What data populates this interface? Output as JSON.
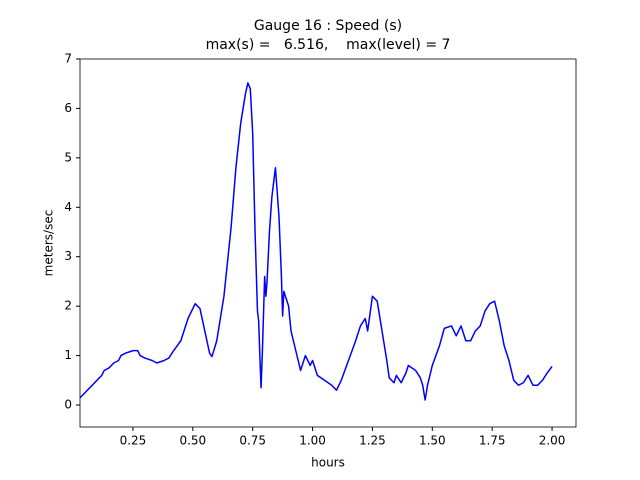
{
  "chart_data": {
    "type": "line",
    "title": "Gauge 16 : Speed (s)",
    "subtitle": "max(s) =   6.516,    max(level) = 7",
    "x_label": "hours",
    "y_label": "meters/sec",
    "xlim": [
      0.029,
      2.1
    ],
    "ylim": [
      -0.445,
      7
    ],
    "xticks": [
      0.25,
      {
        "value": 0.5,
        "label": "0.50"
      },
      0.75,
      {
        "value": 1,
        "label": "1.00"
      },
      1.25,
      {
        "value": 1.5,
        "label": "1.50"
      },
      1.75,
      {
        "value": 2,
        "label": "2.00"
      }
    ],
    "yticks": [
      0,
      1,
      2,
      3,
      4,
      5,
      6,
      7
    ],
    "grid": false,
    "x": [
      0.03,
      0.05,
      0.08,
      0.1,
      0.12,
      0.13,
      0.15,
      0.17,
      0.19,
      0.2,
      0.22,
      0.25,
      0.27,
      0.28,
      0.3,
      0.33,
      0.35,
      0.38,
      0.4,
      0.42,
      0.45,
      0.48,
      0.51,
      0.53,
      0.55,
      0.57,
      0.58,
      0.6,
      0.63,
      0.66,
      0.68,
      0.7,
      0.72,
      0.73,
      0.74,
      0.75,
      0.76,
      0.77,
      0.775,
      0.78,
      0.785,
      0.79,
      0.8,
      0.805,
      0.81,
      0.82,
      0.83,
      0.845,
      0.86,
      0.87,
      0.875,
      0.88,
      0.9,
      0.91,
      0.92,
      0.94,
      0.95,
      0.97,
      0.99,
      1.0,
      1.02,
      1.05,
      1.08,
      1.1,
      1.12,
      1.15,
      1.18,
      1.2,
      1.22,
      1.23,
      1.25,
      1.27,
      1.29,
      1.31,
      1.32,
      1.34,
      1.35,
      1.37,
      1.39,
      1.4,
      1.43,
      1.45,
      1.46,
      1.47,
      1.48,
      1.5,
      1.53,
      1.55,
      1.58,
      1.6,
      1.62,
      1.64,
      1.66,
      1.68,
      1.7,
      1.72,
      1.74,
      1.76,
      1.78,
      1.8,
      1.82,
      1.84,
      1.86,
      1.88,
      1.9,
      1.92,
      1.94,
      1.96,
      1.98,
      2.0
    ],
    "series": [
      {
        "color": "#0000ff",
        "values": [
          0.15,
          0.25,
          0.4,
          0.5,
          0.6,
          0.7,
          0.75,
          0.85,
          0.9,
          1.0,
          1.05,
          1.1,
          1.1,
          1.0,
          0.95,
          0.9,
          0.85,
          0.9,
          0.95,
          1.1,
          1.3,
          1.75,
          2.05,
          1.95,
          1.5,
          1.05,
          0.98,
          1.3,
          2.2,
          3.6,
          4.8,
          5.7,
          6.3,
          6.516,
          6.4,
          5.5,
          3.5,
          1.9,
          1.7,
          1.0,
          0.35,
          1.0,
          2.6,
          2.2,
          2.5,
          3.5,
          4.2,
          4.8,
          3.8,
          2.6,
          1.8,
          2.3,
          2.0,
          1.5,
          1.3,
          0.9,
          0.7,
          1.0,
          0.8,
          0.9,
          0.6,
          0.5,
          0.4,
          0.3,
          0.5,
          0.9,
          1.3,
          1.6,
          1.75,
          1.5,
          2.2,
          2.1,
          1.5,
          0.9,
          0.55,
          0.45,
          0.6,
          0.45,
          0.65,
          0.8,
          0.7,
          0.55,
          0.4,
          0.1,
          0.4,
          0.8,
          1.2,
          1.55,
          1.6,
          1.4,
          1.6,
          1.3,
          1.3,
          1.5,
          1.6,
          1.9,
          2.05,
          2.1,
          1.7,
          1.2,
          0.9,
          0.5,
          0.4,
          0.45,
          0.6,
          0.4,
          0.4,
          0.5,
          0.65,
          0.78
        ]
      }
    ]
  }
}
